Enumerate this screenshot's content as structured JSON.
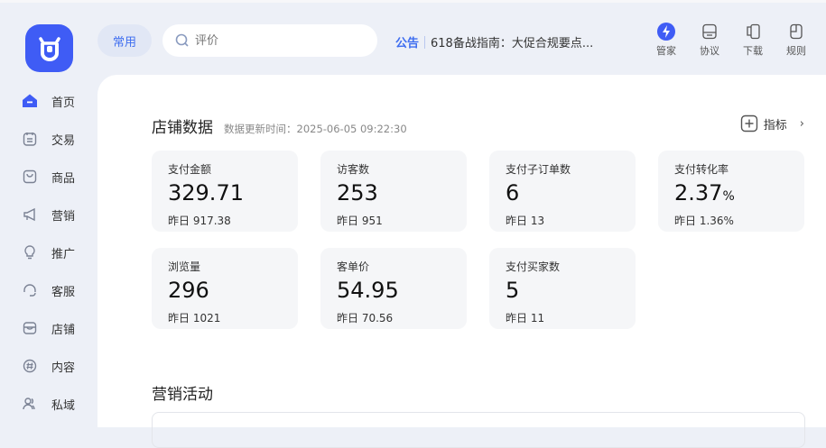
{
  "nav": [
    {
      "label": "首页",
      "icon": "home-icon",
      "active": true
    },
    {
      "label": "交易",
      "icon": "order-icon"
    },
    {
      "label": "商品",
      "icon": "bag-icon"
    },
    {
      "label": "营销",
      "icon": "megaphone-icon"
    },
    {
      "label": "推广",
      "icon": "bulb-icon"
    },
    {
      "label": "客服",
      "icon": "headset-icon"
    },
    {
      "label": "店铺",
      "icon": "shop-icon"
    },
    {
      "label": "内容",
      "icon": "hash-icon"
    },
    {
      "label": "私域",
      "icon": "users-icon"
    }
  ],
  "header": {
    "common": "常用",
    "search_placeholder": "评价",
    "notice_tag": "公告",
    "notice_text": "618备战指南：大促合规要点...",
    "tools": [
      {
        "label": "管家",
        "icon": "lightning-icon"
      },
      {
        "label": "协议",
        "icon": "agreement-icon"
      },
      {
        "label": "下载",
        "icon": "download-icon"
      },
      {
        "label": "规则",
        "icon": "rules-icon"
      }
    ]
  },
  "store": {
    "title": "店铺数据",
    "updated": "数据更新时间：2025-06-05 09:22:30",
    "metric_btn": "指标",
    "cards": [
      {
        "label": "支付金额",
        "value": "329.71",
        "unit": "",
        "yesterday": "昨日 917.38"
      },
      {
        "label": "访客数",
        "value": "253",
        "unit": "",
        "yesterday": "昨日 951"
      },
      {
        "label": "支付子订单数",
        "value": "6",
        "unit": "",
        "yesterday": "昨日 13"
      },
      {
        "label": "支付转化率",
        "value": "2.37",
        "unit": "%",
        "yesterday": "昨日 1.36%"
      },
      {
        "label": "浏览量",
        "value": "296",
        "unit": "",
        "yesterday": "昨日 1021"
      },
      {
        "label": "客单价",
        "value": "54.95",
        "unit": "",
        "yesterday": "昨日 70.56"
      },
      {
        "label": "支付买家数",
        "value": "5",
        "unit": "",
        "yesterday": "昨日 11"
      }
    ]
  },
  "marketing": {
    "title": "营销活动"
  },
  "colors": {
    "accent": "#3f5cf5",
    "link": "#3f6ef0",
    "sidebar_bg": "#edf0f7",
    "card_bg": "#f5f6f8"
  }
}
